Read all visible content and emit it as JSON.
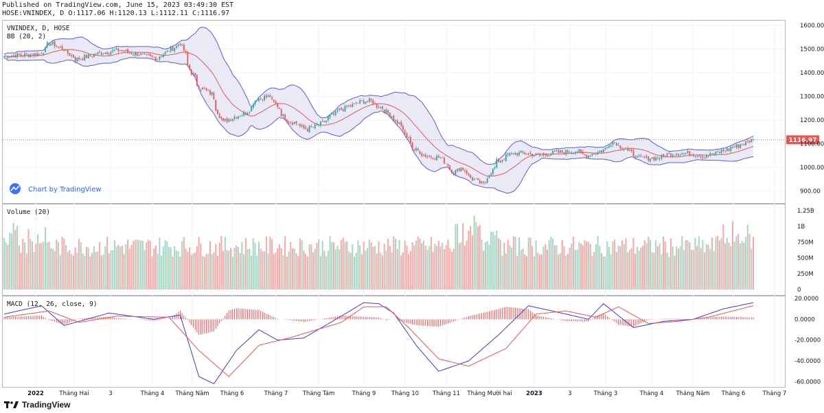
{
  "header": {
    "published": "Published on TradingView.com, June 15, 2023 03:49:30 EST",
    "ohlc": "HOSE:VNINDEX, D O:1117.06 H:1120.13 L:1112.11 C:1116.97"
  },
  "main_pane": {
    "label": "VNINDEX, D, HOSE",
    "indicator_label": "BB (20, 2)",
    "watermark": "Chart by TradingView",
    "last_price": "1116.97"
  },
  "volume_pane": {
    "label": "Volume (20)"
  },
  "macd_pane": {
    "label": "MACD (12, 26, close, 9)"
  },
  "brand": {
    "name": "TradingView"
  },
  "colors": {
    "up": "#26a69a",
    "down": "#ef5350",
    "bb_band": "#5b5bd6",
    "bb_basis": "#e05a5a",
    "bb_fill": "#e3e1f3",
    "macd_line": "#3b3bd6",
    "signal_line": "#ef5350",
    "last_price_tag": "#ef5350"
  },
  "chart_data": [
    {
      "type": "candlestick",
      "title": "VNINDEX, D, HOSE",
      "ylim": [
        850,
        1620
      ],
      "y_ticks": [
        "1600.00",
        "1500.00",
        "1400.00",
        "1300.00",
        "1200.00",
        "1100.00",
        "1000.00",
        "900.00"
      ],
      "x_tick_labels": [
        "2022",
        "Tháng Hai",
        "3",
        "Tháng 4",
        "Tháng Năm",
        "Tháng 6",
        "Tháng 7",
        "Tháng Tám",
        "Tháng 9",
        "Tháng 10",
        "Tháng 11",
        "Tháng Mười hai",
        "2023",
        "3",
        "Tháng 3",
        "Tháng 4",
        "Tháng Năm",
        "Tháng 6",
        "Tháng 7"
      ],
      "close_anchors": {
        "x": [
          "2021-12-01",
          "2021-12-28",
          "2022-01-04",
          "2022-01-14",
          "2022-01-24",
          "2022-02-08",
          "2022-02-25",
          "2022-03-10",
          "2022-03-25",
          "2022-04-05",
          "2022-04-12",
          "2022-04-20",
          "2022-04-26",
          "2022-05-05",
          "2022-05-13",
          "2022-05-20",
          "2022-05-31",
          "2022-06-08",
          "2022-06-17",
          "2022-06-23",
          "2022-06-30",
          "2022-07-06",
          "2022-07-15",
          "2022-07-25",
          "2022-08-08",
          "2022-08-19",
          "2022-08-26",
          "2022-09-01",
          "2022-09-12",
          "2022-09-23",
          "2022-10-03",
          "2022-10-12",
          "2022-10-24",
          "2022-11-02",
          "2022-11-08",
          "2022-11-16",
          "2022-11-24",
          "2022-12-05",
          "2022-12-16",
          "2022-12-26",
          "2023-01-06",
          "2023-01-13",
          "2023-02-02",
          "2023-02-09",
          "2023-02-21",
          "2023-03-01",
          "2023-03-10",
          "2023-03-20",
          "2023-04-04",
          "2023-04-14",
          "2023-04-25",
          "2023-05-08",
          "2023-05-18",
          "2023-06-01",
          "2023-06-14"
        ],
        "close": [
          1470,
          1480,
          1525,
          1500,
          1455,
          1480,
          1495,
          1480,
          1460,
          1500,
          1525,
          1400,
          1340,
          1310,
          1190,
          1210,
          1230,
          1290,
          1300,
          1260,
          1200,
          1190,
          1160,
          1180,
          1240,
          1265,
          1280,
          1280,
          1240,
          1180,
          1080,
          1050,
          1040,
          980,
          1000,
          950,
          930,
          1025,
          1060,
          1060,
          1050,
          1060,
          1070,
          1050,
          1070,
          1110,
          1080,
          1040,
          1040,
          1060,
          1060,
          1050,
          1060,
          1090,
          1117
        ]
      },
      "last_close": 1116.97
    },
    {
      "type": "bar",
      "title": "Volume (20)",
      "ylim": [
        0,
        1350000000
      ],
      "y_ticks": [
        "1.25B",
        "1B",
        "750M",
        "500M",
        "250M",
        "0"
      ],
      "notes": "daily volume, mostly 400M–900M, peaks near 1.3B"
    },
    {
      "type": "line",
      "title": "MACD (12, 26, close, 9)",
      "ylim": [
        -65,
        22
      ],
      "y_ticks": [
        "20.0000",
        "0.0000",
        "-20.0000",
        "-40.0000",
        "-60.0000"
      ],
      "series": [
        {
          "name": "MACD",
          "anchors": [
            [
              0,
              5
            ],
            [
              0.05,
              13
            ],
            [
              0.08,
              -6
            ],
            [
              0.14,
              6
            ],
            [
              0.2,
              0
            ],
            [
              0.235,
              4
            ],
            [
              0.26,
              -55
            ],
            [
              0.28,
              -62
            ],
            [
              0.31,
              -30
            ],
            [
              0.34,
              -10
            ],
            [
              0.365,
              -20
            ],
            [
              0.4,
              -18
            ],
            [
              0.45,
              3
            ],
            [
              0.48,
              16
            ],
            [
              0.5,
              15
            ],
            [
              0.52,
              6
            ],
            [
              0.55,
              -25
            ],
            [
              0.58,
              -50
            ],
            [
              0.62,
              -40
            ],
            [
              0.66,
              -15
            ],
            [
              0.7,
              13
            ],
            [
              0.75,
              5
            ],
            [
              0.78,
              0
            ],
            [
              0.8,
              15
            ],
            [
              0.84,
              -8
            ],
            [
              0.88,
              -2
            ],
            [
              0.92,
              0
            ],
            [
              0.96,
              10
            ],
            [
              1,
              16
            ]
          ]
        },
        {
          "name": "Signal",
          "anchors": [
            [
              0,
              2
            ],
            [
              0.06,
              8
            ],
            [
              0.1,
              -3
            ],
            [
              0.15,
              3
            ],
            [
              0.22,
              2
            ],
            [
              0.26,
              -30
            ],
            [
              0.3,
              -55
            ],
            [
              0.34,
              -25
            ],
            [
              0.38,
              -18
            ],
            [
              0.45,
              -3
            ],
            [
              0.48,
              12
            ],
            [
              0.51,
              12
            ],
            [
              0.54,
              -8
            ],
            [
              0.58,
              -38
            ],
            [
              0.62,
              -45
            ],
            [
              0.67,
              -28
            ],
            [
              0.71,
              5
            ],
            [
              0.75,
              8
            ],
            [
              0.79,
              2
            ],
            [
              0.82,
              12
            ],
            [
              0.86,
              -4
            ],
            [
              0.9,
              -2
            ],
            [
              0.94,
              2
            ],
            [
              1,
              13
            ]
          ]
        }
      ]
    }
  ]
}
